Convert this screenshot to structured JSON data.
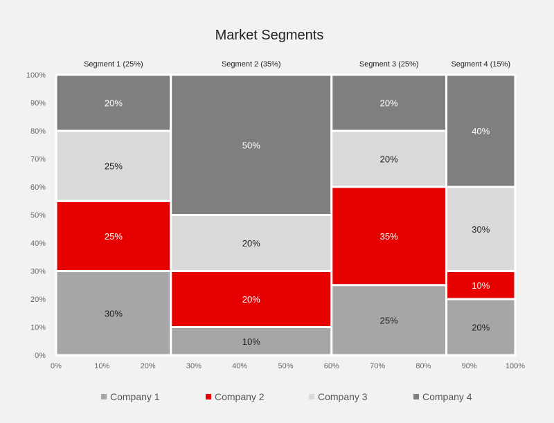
{
  "chart_data": {
    "type": "mekko",
    "title": "Market Segments",
    "segments": [
      {
        "name": "Segment 1 (25%)",
        "width": 25,
        "values": [
          30,
          25,
          25,
          20
        ]
      },
      {
        "name": "Segment 2 (35%)",
        "width": 35,
        "values": [
          10,
          20,
          20,
          50
        ]
      },
      {
        "name": "Segment 3 (25%)",
        "width": 25,
        "values": [
          25,
          35,
          20,
          20
        ]
      },
      {
        "name": "Segment 4 (15%)",
        "width": 15,
        "values": [
          20,
          10,
          30,
          40
        ]
      }
    ],
    "series": [
      {
        "name": "Company 1",
        "color": "#a6a6a6",
        "label_color": "#222222"
      },
      {
        "name": "Company 2",
        "color": "#e60000",
        "label_color": "#ffffff"
      },
      {
        "name": "Company 3",
        "color": "#d9d9d9",
        "label_color": "#222222"
      },
      {
        "name": "Company 4",
        "color": "#7f7f7f",
        "label_color": "#ffffff"
      }
    ],
    "x_ticks": [
      "0%",
      "10%",
      "20%",
      "30%",
      "40%",
      "50%",
      "60%",
      "70%",
      "80%",
      "90%",
      "100%"
    ],
    "y_ticks": [
      "0%",
      "10%",
      "20%",
      "30%",
      "40%",
      "50%",
      "60%",
      "70%",
      "80%",
      "90%",
      "100%"
    ],
    "xlim": [
      0,
      100
    ],
    "ylim": [
      0,
      100
    ],
    "legend_position": "bottom",
    "grid": false
  }
}
